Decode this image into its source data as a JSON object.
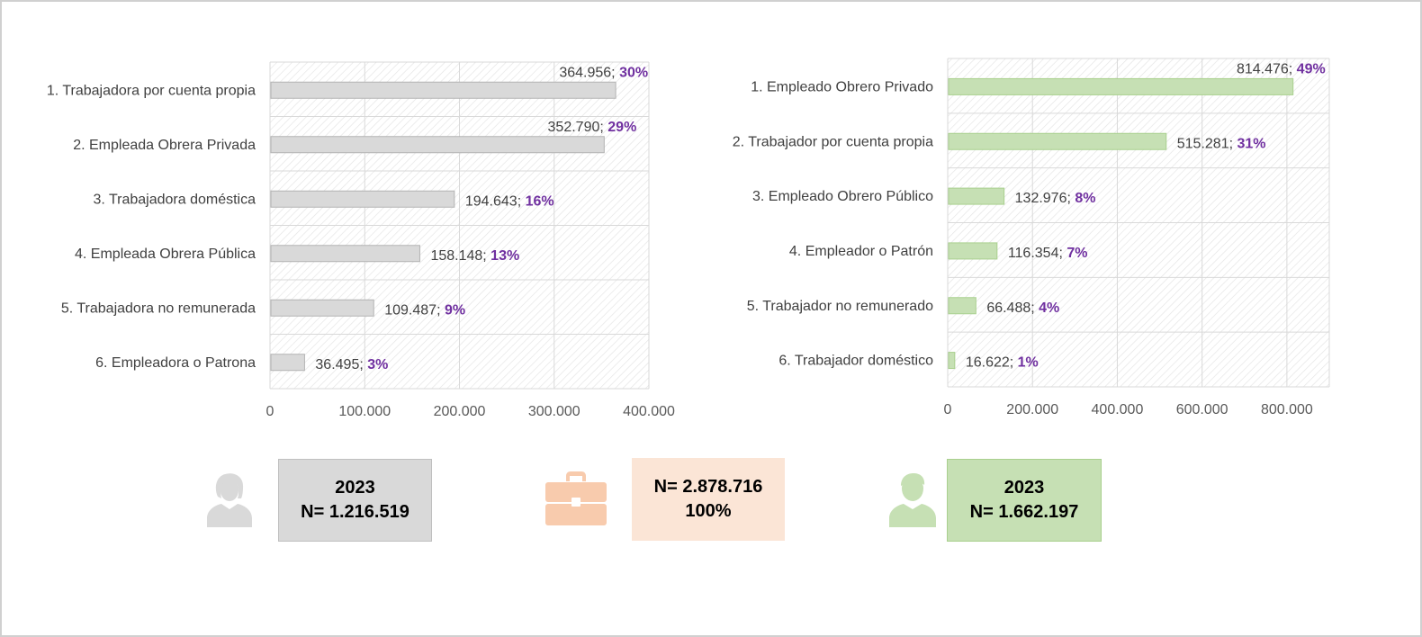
{
  "colors": {
    "women_bar": "#d9d9d9",
    "women_bar_stroke": "#b3b3b3",
    "men_bar": "#c6e0b4",
    "men_bar_stroke": "#a9d08e",
    "percent_text": "#7030a0",
    "total_box": "#fbe5d6",
    "total_icon": "#f8cbad",
    "grid": "#d9d9d9"
  },
  "chart_data": [
    {
      "type": "bar",
      "orientation": "horizontal",
      "categories": [
        "1. Trabajadora por cuenta propia",
        "2. Empleada Obrera Privada",
        "3. Trabajadora doméstica",
        "4. Empleada Obrera Pública",
        "5. Trabajadora no remunerada",
        "6. Empleadora o Patrona"
      ],
      "values": [
        364956,
        352790,
        194643,
        158148,
        109487,
        36495
      ],
      "value_labels": [
        "364.956;",
        "352.790;",
        "194.643;",
        "158.148;",
        "109.487;",
        "36.495;"
      ],
      "percent_labels": [
        "30%",
        "29%",
        "16%",
        "13%",
        "9%",
        "3%"
      ],
      "xlim": [
        0,
        400000
      ],
      "xticks": [
        0,
        100000,
        200000,
        300000,
        400000
      ],
      "xtick_labels": [
        "0",
        "100.000",
        "200.000",
        "300.000",
        "400.000"
      ],
      "grid": true,
      "plot_background": "diagonal-hatch"
    },
    {
      "type": "bar",
      "orientation": "horizontal",
      "categories": [
        "1. Empleado Obrero Privado",
        "2. Trabajador por cuenta propia",
        "3. Empleado Obrero Público",
        "4. Empleador o Patrón",
        "5. Trabajador no remunerado",
        "6. Trabajador doméstico"
      ],
      "values": [
        814476,
        515281,
        132976,
        116354,
        66488,
        16622
      ],
      "value_labels": [
        "814.476;",
        "515.281;",
        "132.976;",
        "116.354;",
        "66.488;",
        "16.622;"
      ],
      "percent_labels": [
        "49%",
        "31%",
        "8%",
        "7%",
        "4%",
        "1%"
      ],
      "xlim": [
        0,
        900000
      ],
      "xticks": [
        0,
        200000,
        400000,
        600000,
        800000
      ],
      "xtick_labels": [
        "0",
        "200.000",
        "400.000",
        "600.000",
        "800.000"
      ],
      "grid": true,
      "plot_background": "diagonal-hatch"
    }
  ],
  "summary": {
    "women": {
      "year": "2023",
      "n": "N= 1.216.519",
      "icon": "woman-person-icon"
    },
    "total": {
      "n": "N= 2.878.716",
      "percent": "100%",
      "icon": "briefcase-icon"
    },
    "men": {
      "year": "2023",
      "n": "N= 1.662.197",
      "icon": "man-person-icon"
    }
  }
}
